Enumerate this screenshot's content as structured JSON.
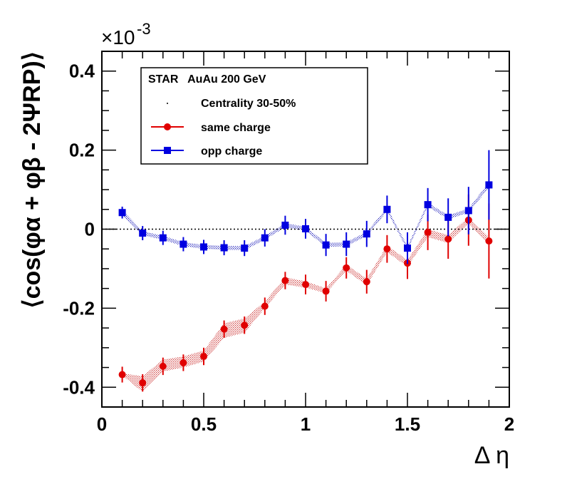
{
  "chart_data": {
    "type": "scatter",
    "exponent_label": "×10",
    "exponent_power": "-3",
    "xlabel": "Δ η",
    "ylabel": "⟨cos(φα + φβ - 2ΨRP)⟩",
    "xlim": [
      0,
      2
    ],
    "ylim": [
      -0.45,
      0.45
    ],
    "x_ticks": [
      0,
      0.5,
      1,
      1.5,
      2
    ],
    "x_tick_labels": [
      "0",
      "0.5",
      "1",
      "1.5",
      "2"
    ],
    "y_ticks": [
      -0.4,
      -0.2,
      0,
      0.2,
      0.4
    ],
    "y_tick_labels": [
      "-0.4",
      "-0.2",
      "0",
      "0.2",
      "0.4"
    ],
    "legend": {
      "position": "top-left",
      "title": "STAR   AuAu 200 GeV",
      "entries": [
        "Centrality 30-50%",
        "same charge",
        "opp charge"
      ]
    },
    "colors": {
      "same": "#e00000",
      "opp": "#0000e0",
      "band_same": "#d04040",
      "band_opp": "#3030c0"
    },
    "series": [
      {
        "name": "same charge",
        "marker": "circle",
        "x": [
          0.1,
          0.2,
          0.3,
          0.4,
          0.5,
          0.6,
          0.7,
          0.8,
          0.9,
          1.0,
          1.1,
          1.2,
          1.3,
          1.4,
          1.5,
          1.6,
          1.7,
          1.8,
          1.9
        ],
        "y": [
          -0.368,
          -0.389,
          -0.347,
          -0.338,
          -0.322,
          -0.253,
          -0.243,
          -0.195,
          -0.13,
          -0.14,
          -0.157,
          -0.098,
          -0.133,
          -0.05,
          -0.086,
          -0.008,
          -0.025,
          0.023,
          -0.03
        ],
        "err": [
          0.02,
          0.022,
          0.022,
          0.021,
          0.022,
          0.022,
          0.022,
          0.022,
          0.022,
          0.025,
          0.026,
          0.027,
          0.03,
          0.035,
          0.04,
          0.045,
          0.05,
          0.065,
          0.095
        ],
        "band_low": [
          -0.37,
          -0.412,
          -0.36,
          -0.35,
          -0.335,
          -0.275,
          -0.262,
          -0.2,
          -0.14,
          -0.148,
          -0.162,
          -0.105,
          -0.142,
          -0.058,
          -0.095,
          -0.02,
          -0.035,
          0.015,
          -0.04
        ],
        "band_high": [
          -0.365,
          -0.372,
          -0.33,
          -0.322,
          -0.307,
          -0.238,
          -0.226,
          -0.183,
          -0.122,
          -0.132,
          -0.15,
          -0.09,
          -0.125,
          -0.042,
          -0.078,
          0.0,
          -0.015,
          0.03,
          -0.02
        ]
      },
      {
        "name": "opp charge",
        "marker": "square",
        "x": [
          0.1,
          0.2,
          0.3,
          0.4,
          0.5,
          0.6,
          0.7,
          0.8,
          0.9,
          1.0,
          1.1,
          1.2,
          1.3,
          1.4,
          1.5,
          1.6,
          1.7,
          1.8,
          1.9
        ],
        "y": [
          0.042,
          -0.01,
          -0.022,
          -0.038,
          -0.045,
          -0.047,
          -0.048,
          -0.022,
          0.01,
          0.001,
          -0.04,
          -0.038,
          -0.012,
          0.05,
          -0.048,
          0.062,
          0.03,
          0.047,
          0.112
        ],
        "err": [
          0.015,
          0.018,
          0.018,
          0.018,
          0.018,
          0.019,
          0.02,
          0.022,
          0.024,
          0.025,
          0.028,
          0.03,
          0.033,
          0.035,
          0.04,
          0.042,
          0.048,
          0.06,
          0.088
        ],
        "band_low": [
          0.035,
          -0.015,
          -0.027,
          -0.043,
          -0.05,
          -0.052,
          -0.053,
          -0.027,
          0.005,
          -0.004,
          -0.045,
          -0.043,
          -0.017,
          0.045,
          -0.053,
          0.057,
          0.025,
          0.042,
          0.105
        ],
        "band_high": [
          0.049,
          -0.005,
          -0.017,
          -0.033,
          -0.04,
          -0.042,
          -0.043,
          -0.017,
          0.015,
          0.006,
          -0.035,
          -0.033,
          -0.007,
          0.055,
          -0.043,
          0.067,
          0.035,
          0.052,
          0.119
        ]
      }
    ]
  }
}
